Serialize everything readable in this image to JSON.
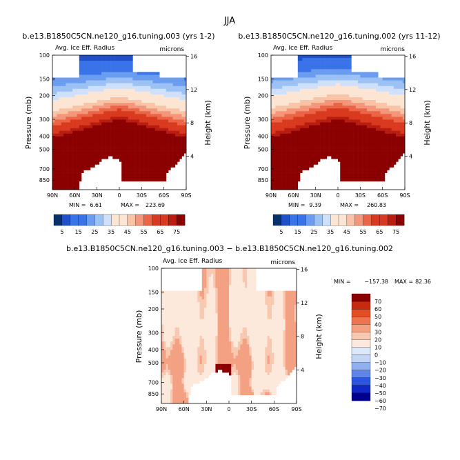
{
  "figure": {
    "title": "JJA",
    "colors": {
      "sequential_scale": [
        "#08306b",
        "#1f4fc9",
        "#3a73e8",
        "#6a9cf0",
        "#9cc1f4",
        "#cfe0fa",
        "#fde5d4",
        "#fbc3a6",
        "#f5957a",
        "#ec6446",
        "#d93a1f",
        "#b81d10",
        "#8b0000"
      ],
      "diverging_scale": [
        "#00008b",
        "#1028c4",
        "#2d55e0",
        "#5f86ea",
        "#90b0f1",
        "#c3d6f6",
        "#dce9fb",
        "#fde9dc",
        "#f9c8b0",
        "#f4a183",
        "#ee744f",
        "#e24d25",
        "#c62b10",
        "#8b0000"
      ],
      "ground": "#ffffff"
    }
  },
  "chart_data": [
    {
      "type": "heatmap",
      "title": "b.e13.B1850C5CN.ne120_g16.tuning.003 (yrs 1-2)",
      "subtitle": "Avg. Ice Eff. Radius",
      "units": "microns",
      "ylabel": "Pressure (mb)",
      "ylabel_right": "Height (km)",
      "x_ticks": [
        "90N",
        "60N",
        "30N",
        "0",
        "30S",
        "60S",
        "90S"
      ],
      "y_ticks": [
        "100",
        "150",
        "200",
        "300",
        "400",
        "500",
        "700",
        "850"
      ],
      "y_ticks_right": [
        "16",
        "12",
        "8",
        "4"
      ],
      "stats": {
        "min_label": "MIN =",
        "min": "6.61",
        "max_label": "MAX =",
        "max": "223.69"
      },
      "colorbar_labels": [
        "5",
        "15",
        "25",
        "35",
        "45",
        "55",
        "65",
        "75"
      ],
      "colorbar_levels": [
        5,
        10,
        15,
        20,
        25,
        30,
        35,
        40,
        45,
        50,
        55,
        60,
        65,
        70,
        75
      ]
    },
    {
      "type": "heatmap",
      "title": "b.e13.B1850C5CN.ne120_g16.tuning.002 (yrs 11-12)",
      "subtitle": "Avg. Ice Eff. Radius",
      "units": "microns",
      "ylabel": "Pressure (mb)",
      "ylabel_right": "Height (km)",
      "x_ticks": [
        "90N",
        "60N",
        "30N",
        "0",
        "30S",
        "60S",
        "90S"
      ],
      "y_ticks": [
        "100",
        "150",
        "200",
        "300",
        "400",
        "500",
        "700",
        "850"
      ],
      "y_ticks_right": [
        "16",
        "12",
        "8",
        "4"
      ],
      "stats": {
        "min_label": "MIN =",
        "min": "9.39",
        "max_label": "MAX =",
        "max": "260.83"
      },
      "colorbar_labels": [
        "5",
        "15",
        "25",
        "35",
        "45",
        "55",
        "65",
        "75"
      ],
      "colorbar_levels": [
        5,
        10,
        15,
        20,
        25,
        30,
        35,
        40,
        45,
        50,
        55,
        60,
        65,
        70,
        75
      ]
    },
    {
      "type": "heatmap",
      "title": "b.e13.B1850C5CN.ne120_g16.tuning.003 − b.e13.B1850C5CN.ne120_g16.tuning.002",
      "subtitle": "Avg. Ice Eff. Radius",
      "units": "microns",
      "ylabel": "Pressure (mb)",
      "ylabel_right": "Height (km)",
      "x_ticks": [
        "90N",
        "60N",
        "30N",
        "0",
        "30S",
        "60S",
        "90S"
      ],
      "y_ticks": [
        "100",
        "150",
        "200",
        "300",
        "400",
        "500",
        "700",
        "850"
      ],
      "y_ticks_right": [
        "16",
        "12",
        "8",
        "4"
      ],
      "stats": {
        "min_label": "MIN =",
        "min": "−157.38",
        "max_label": "MAX =",
        "max": "82.36"
      },
      "colorbar_labels": [
        "70",
        "60",
        "50",
        "40",
        "30",
        "20",
        "10",
        "0",
        "−10",
        "−20",
        "−30",
        "−40",
        "−50",
        "−60",
        "−70"
      ],
      "colorbar_levels": [
        -70,
        -60,
        -50,
        -40,
        -30,
        -20,
        -10,
        0,
        10,
        20,
        30,
        40,
        50,
        60,
        70
      ]
    }
  ]
}
